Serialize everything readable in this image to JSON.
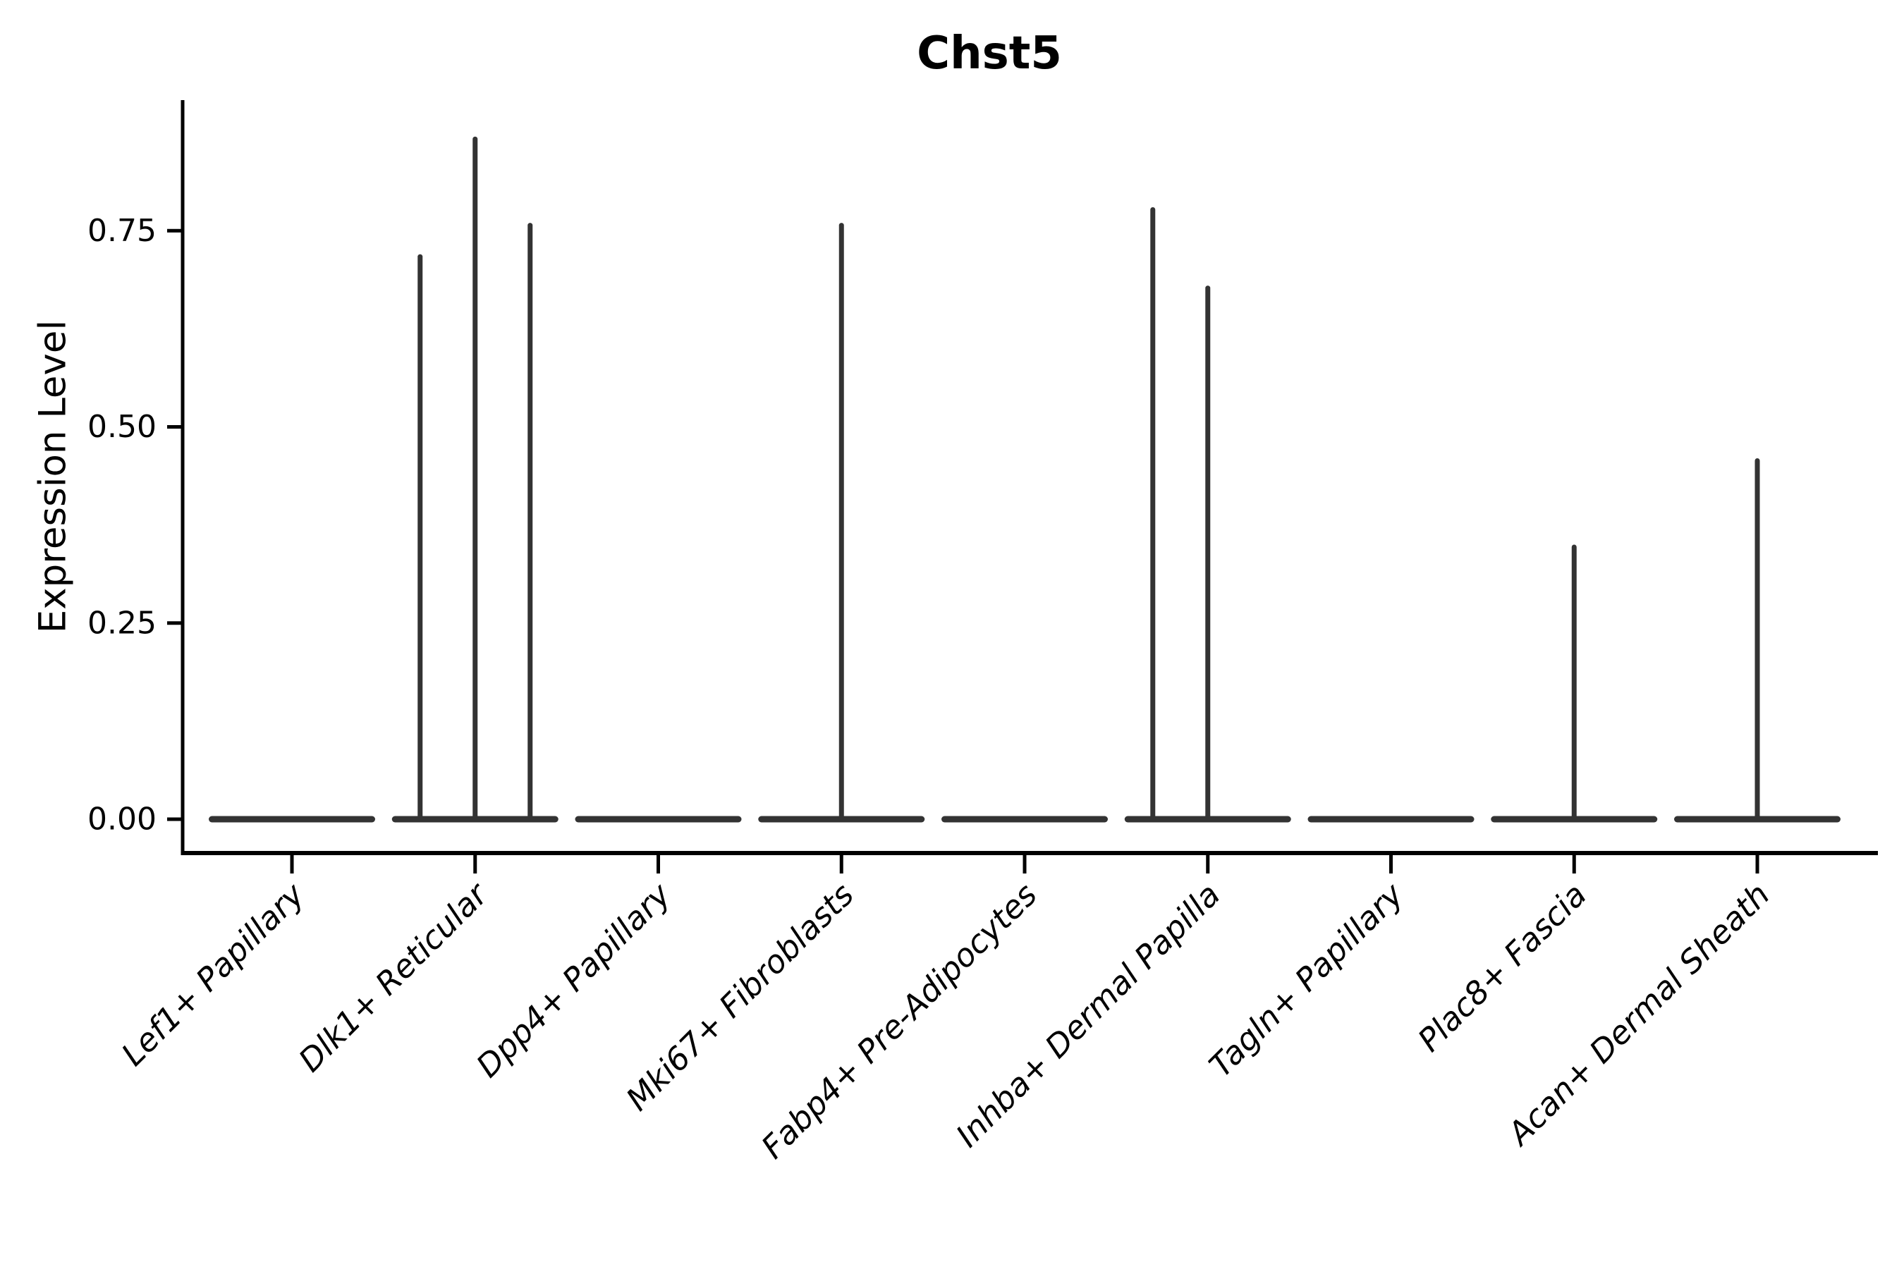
{
  "chart_data": {
    "type": "violin",
    "title": "Chst5",
    "ylabel": "Expression Level",
    "xlabel": "",
    "background_color": "#ffffff",
    "axis_color": "#000000",
    "violin_color": "#333333",
    "grid": false,
    "legend": false,
    "ylim": [
      -0.043,
      0.917
    ],
    "yticks": [
      0.0,
      0.25,
      0.5,
      0.75
    ],
    "ytick_labels": [
      "0.00",
      "0.25",
      "0.50",
      "0.75"
    ],
    "categories": [
      "Lef1+ Papillary",
      "Dlk1+ Reticular",
      "Dpp4+ Papillary",
      "Mki67+ Fibroblasts",
      "Fabp4+ Pre-Adipocytes",
      "Inhba+ Dermal Papilla",
      "Tagln+ Papillary",
      "Plac8+ Fascia",
      "Acan+ Dermal Sheath"
    ],
    "groups_per_category": 3,
    "description": "Violin plot of Chst5 expression; distributions are flattened at 0 with thin spikes up to the maximum expressed value for each sub-violin (left, center, right slot per category).",
    "violins": [
      {
        "category": "Lef1+ Papillary",
        "spike_maxima": [
          0,
          0,
          0
        ]
      },
      {
        "category": "Dlk1+ Reticular",
        "spike_maxima": [
          0.72,
          0.87,
          0.76
        ]
      },
      {
        "category": "Dpp4+ Papillary",
        "spike_maxima": [
          0,
          0,
          0
        ]
      },
      {
        "category": "Mki67+ Fibroblasts",
        "spike_maxima": [
          0,
          0.76,
          0
        ]
      },
      {
        "category": "Fabp4+ Pre-Adipocytes",
        "spike_maxima": [
          0,
          0,
          0
        ]
      },
      {
        "category": "Inhba+ Dermal Papilla",
        "spike_maxima": [
          0.78,
          0.68,
          0
        ]
      },
      {
        "category": "Tagln+ Papillary",
        "spike_maxima": [
          0,
          0,
          0
        ]
      },
      {
        "category": "Plac8+ Fascia",
        "spike_maxima": [
          0,
          0.35,
          0
        ]
      },
      {
        "category": "Acan+ Dermal Sheath",
        "spike_maxima": [
          0,
          0.46,
          0
        ]
      }
    ]
  }
}
